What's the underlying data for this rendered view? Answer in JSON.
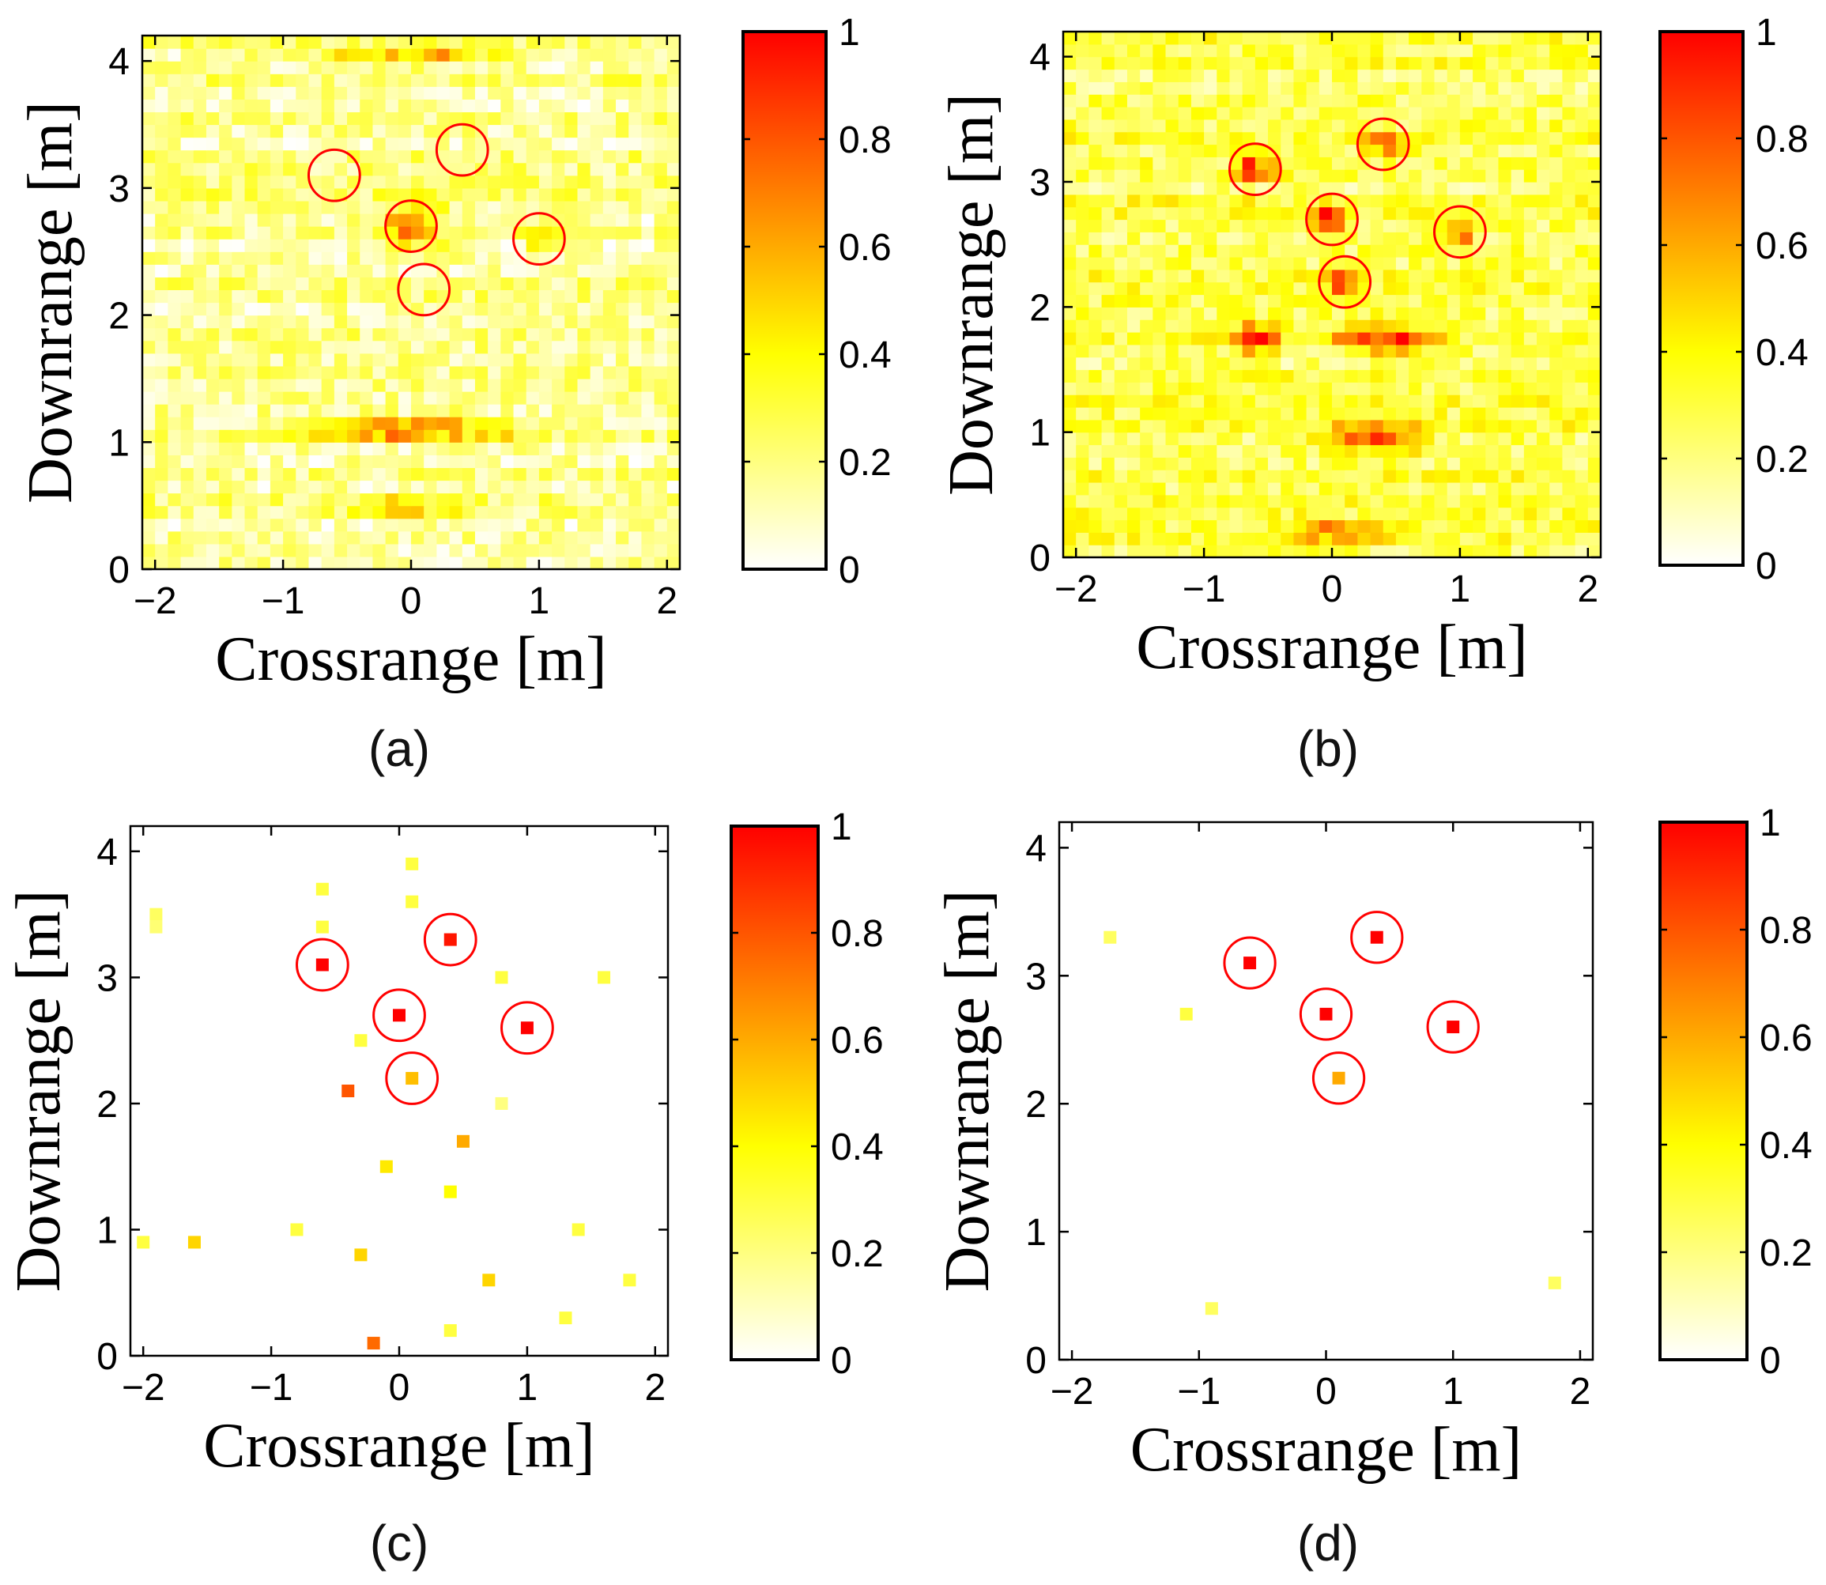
{
  "colors": {
    "low": "#ffffff",
    "mid": "#ffff00",
    "high": "#ff0000",
    "circle": "#ff0000",
    "axes": "#000000"
  },
  "chart_data": [
    {
      "panel": "(a)",
      "type": "heatmap",
      "style": "dense",
      "seed": 11,
      "xlabel": "Crossrange [m]",
      "ylabel": "Downrange [m]",
      "xlim": [
        -2.1,
        2.1
      ],
      "ylim": [
        0,
        4.2
      ],
      "xticks": [
        -2,
        -1,
        0,
        1,
        2
      ],
      "xtick_labels": [
        "−2",
        "−1",
        "0",
        "1",
        "2"
      ],
      "yticks": [
        0,
        1,
        2,
        3,
        4
      ],
      "ytick_labels": [
        "0",
        "1",
        "2",
        "3",
        "4"
      ],
      "colorbar": {
        "range": [
          0,
          1
        ],
        "ticks": [
          0,
          0.2,
          0.4,
          0.6,
          0.8,
          1
        ],
        "tick_labels": [
          "0",
          "0.2",
          "0.4",
          "0.6",
          "0.8",
          "1"
        ]
      },
      "base_level": 0.18,
      "hotspots": [
        {
          "x": 0.0,
          "y": 1.1,
          "value": 0.9,
          "sx": 0.55,
          "sy": 0.04
        },
        {
          "x": 0.0,
          "y": 2.7,
          "value": 0.55,
          "sx": 0.18,
          "sy": 0.12
        },
        {
          "x": 1.0,
          "y": 2.6,
          "value": 0.5,
          "sx": 0.08,
          "sy": 0.05
        },
        {
          "x": 0.0,
          "y": 0.5,
          "value": 0.35,
          "sx": 0.3,
          "sy": 0.05
        },
        {
          "x": 0.0,
          "y": 4.05,
          "value": 0.4,
          "sx": 0.5,
          "sy": 0.05
        }
      ],
      "circles": [
        {
          "x": -0.6,
          "y": 3.1
        },
        {
          "x": 0.4,
          "y": 3.3
        },
        {
          "x": 0.0,
          "y": 2.7
        },
        {
          "x": 1.0,
          "y": 2.6
        },
        {
          "x": 0.1,
          "y": 2.2
        }
      ],
      "circle_radius_m": 0.2
    },
    {
      "panel": "(b)",
      "type": "heatmap",
      "style": "dense",
      "seed": 29,
      "xlabel": "Crossrange [m]",
      "ylabel": "Downrange [m]",
      "xlim": [
        -2.1,
        2.1
      ],
      "ylim": [
        0,
        4.2
      ],
      "xticks": [
        -2,
        -1,
        0,
        1,
        2
      ],
      "xtick_labels": [
        "−2",
        "−1",
        "0",
        "1",
        "2"
      ],
      "yticks": [
        0,
        1,
        2,
        3,
        4
      ],
      "ytick_labels": [
        "0",
        "1",
        "2",
        "3",
        "4"
      ],
      "colorbar": {
        "range": [
          0,
          1
        ],
        "ticks": [
          0,
          0.2,
          0.4,
          0.6,
          0.8,
          1
        ],
        "tick_labels": [
          "0",
          "0.2",
          "0.4",
          "0.6",
          "0.8",
          "1"
        ]
      },
      "base_level": 0.28,
      "hotspots": [
        {
          "x": -0.6,
          "y": 3.1,
          "value": 0.75,
          "sx": 0.1,
          "sy": 0.06
        },
        {
          "x": 0.4,
          "y": 3.3,
          "value": 0.7,
          "sx": 0.1,
          "sy": 0.05
        },
        {
          "x": 0.0,
          "y": 2.7,
          "value": 0.85,
          "sx": 0.1,
          "sy": 0.05
        },
        {
          "x": 1.0,
          "y": 2.6,
          "value": 0.85,
          "sx": 0.07,
          "sy": 0.05
        },
        {
          "x": 0.1,
          "y": 2.2,
          "value": 0.6,
          "sx": 0.08,
          "sy": 0.06
        },
        {
          "x": -0.6,
          "y": 1.75,
          "value": 0.65,
          "sx": 0.14,
          "sy": 0.08
        },
        {
          "x": 0.4,
          "y": 1.75,
          "value": 0.7,
          "sx": 0.25,
          "sy": 0.08
        },
        {
          "x": 0.3,
          "y": 0.95,
          "value": 0.6,
          "sx": 0.25,
          "sy": 0.08
        },
        {
          "x": 0.1,
          "y": 0.2,
          "value": 0.55,
          "sx": 0.3,
          "sy": 0.05
        }
      ],
      "circles": [
        {
          "x": -0.6,
          "y": 3.1
        },
        {
          "x": 0.4,
          "y": 3.3
        },
        {
          "x": 0.0,
          "y": 2.7
        },
        {
          "x": 1.0,
          "y": 2.6
        },
        {
          "x": 0.1,
          "y": 2.2
        }
      ],
      "circle_radius_m": 0.2
    },
    {
      "panel": "(c)",
      "type": "scatter",
      "style": "sparse",
      "xlabel": "Crossrange [m]",
      "ylabel": "Downrange [m]",
      "xlim": [
        -2.1,
        2.1
      ],
      "ylim": [
        0,
        4.2
      ],
      "xticks": [
        -2,
        -1,
        0,
        1,
        2
      ],
      "xtick_labels": [
        "−2",
        "−1",
        "0",
        "1",
        "2"
      ],
      "yticks": [
        0,
        1,
        2,
        3,
        4
      ],
      "ytick_labels": [
        "0",
        "1",
        "2",
        "3",
        "4"
      ],
      "colorbar": {
        "range": [
          0,
          1
        ],
        "ticks": [
          0,
          0.2,
          0.4,
          0.6,
          0.8,
          1
        ],
        "tick_labels": [
          "0",
          "0.2",
          "0.4",
          "0.6",
          "0.8",
          "1"
        ]
      },
      "points": [
        {
          "x": -0.6,
          "y": 3.1,
          "value": 1.0
        },
        {
          "x": 0.4,
          "y": 3.3,
          "value": 0.95
        },
        {
          "x": 0.0,
          "y": 2.7,
          "value": 1.0
        },
        {
          "x": 1.0,
          "y": 2.6,
          "value": 1.0
        },
        {
          "x": 0.1,
          "y": 2.2,
          "value": 0.55
        },
        {
          "x": 0.1,
          "y": 3.9,
          "value": 0.3
        },
        {
          "x": -0.6,
          "y": 3.7,
          "value": 0.3
        },
        {
          "x": 0.1,
          "y": 3.6,
          "value": 0.3
        },
        {
          "x": -1.9,
          "y": 3.5,
          "value": 0.25
        },
        {
          "x": -1.9,
          "y": 3.4,
          "value": 0.22
        },
        {
          "x": -0.6,
          "y": 3.4,
          "value": 0.3
        },
        {
          "x": 0.8,
          "y": 3.0,
          "value": 0.3
        },
        {
          "x": 1.6,
          "y": 3.0,
          "value": 0.3
        },
        {
          "x": -0.3,
          "y": 2.5,
          "value": 0.3
        },
        {
          "x": -0.4,
          "y": 2.1,
          "value": 0.8
        },
        {
          "x": 0.8,
          "y": 2.0,
          "value": 0.2
        },
        {
          "x": 0.5,
          "y": 1.7,
          "value": 0.6
        },
        {
          "x": -0.1,
          "y": 1.5,
          "value": 0.45
        },
        {
          "x": 0.4,
          "y": 1.3,
          "value": 0.4
        },
        {
          "x": -2.0,
          "y": 0.9,
          "value": 0.3
        },
        {
          "x": -1.6,
          "y": 0.9,
          "value": 0.5
        },
        {
          "x": -0.8,
          "y": 1.0,
          "value": 0.3
        },
        {
          "x": 1.4,
          "y": 1.0,
          "value": 0.3
        },
        {
          "x": -0.3,
          "y": 0.8,
          "value": 0.5
        },
        {
          "x": 0.7,
          "y": 0.6,
          "value": 0.5
        },
        {
          "x": 1.8,
          "y": 0.6,
          "value": 0.3
        },
        {
          "x": 1.3,
          "y": 0.3,
          "value": 0.3
        },
        {
          "x": 0.4,
          "y": 0.2,
          "value": 0.3
        },
        {
          "x": -0.2,
          "y": 0.1,
          "value": 0.75
        }
      ],
      "circles": [
        {
          "x": -0.6,
          "y": 3.1
        },
        {
          "x": 0.4,
          "y": 3.3
        },
        {
          "x": 0.0,
          "y": 2.7
        },
        {
          "x": 1.0,
          "y": 2.6
        },
        {
          "x": 0.1,
          "y": 2.2
        }
      ],
      "circle_radius_m": 0.2
    },
    {
      "panel": "(d)",
      "type": "scatter",
      "style": "sparse",
      "xlabel": "Crossrange [m]",
      "ylabel": "Downrange [m]",
      "xlim": [
        -2.1,
        2.1
      ],
      "ylim": [
        0,
        4.2
      ],
      "xticks": [
        -2,
        -1,
        0,
        1,
        2
      ],
      "xtick_labels": [
        "−2",
        "−1",
        "0",
        "1",
        "2"
      ],
      "yticks": [
        0,
        1,
        2,
        3,
        4
      ],
      "ytick_labels": [
        "0",
        "1",
        "2",
        "3",
        "4"
      ],
      "colorbar": {
        "range": [
          0,
          1
        ],
        "ticks": [
          0,
          0.2,
          0.4,
          0.6,
          0.8,
          1
        ],
        "tick_labels": [
          "0",
          "0.2",
          "0.4",
          "0.6",
          "0.8",
          "1"
        ]
      },
      "points": [
        {
          "x": -0.6,
          "y": 3.1,
          "value": 1.0
        },
        {
          "x": 0.4,
          "y": 3.3,
          "value": 1.0
        },
        {
          "x": 0.0,
          "y": 2.7,
          "value": 1.0
        },
        {
          "x": 1.0,
          "y": 2.6,
          "value": 1.0
        },
        {
          "x": 0.1,
          "y": 2.2,
          "value": 0.6
        },
        {
          "x": -1.7,
          "y": 3.3,
          "value": 0.25
        },
        {
          "x": -1.1,
          "y": 2.7,
          "value": 0.3
        },
        {
          "x": -0.9,
          "y": 0.4,
          "value": 0.25
        },
        {
          "x": 1.8,
          "y": 0.6,
          "value": 0.25
        }
      ],
      "circles": [
        {
          "x": -0.6,
          "y": 3.1
        },
        {
          "x": 0.4,
          "y": 3.3
        },
        {
          "x": 0.0,
          "y": 2.7
        },
        {
          "x": 1.0,
          "y": 2.6
        },
        {
          "x": 0.1,
          "y": 2.2
        }
      ],
      "circle_radius_m": 0.2
    }
  ]
}
